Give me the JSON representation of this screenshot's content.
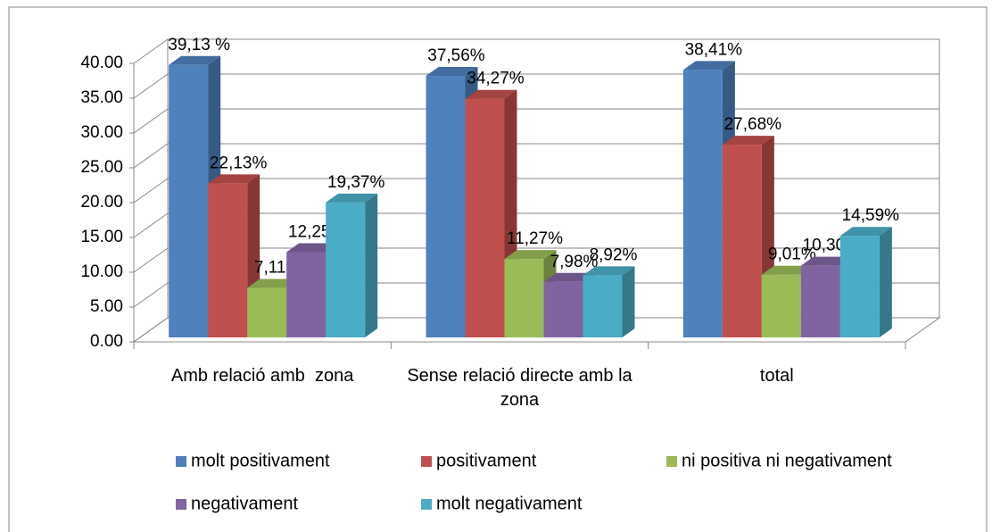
{
  "chart_data": {
    "type": "bar3d",
    "categories": [
      "Amb relació amb  zona",
      "Sense relació directe amb la zona",
      "total"
    ],
    "series": [
      {
        "name": "molt positivament",
        "color": "#4f81bd",
        "values": [
          39.13,
          37.56,
          38.41
        ],
        "value_labels": [
          "39,13 %",
          "37,56%",
          "38,41%"
        ]
      },
      {
        "name": "positivament",
        "color": "#c0504d",
        "values": [
          22.13,
          34.27,
          27.68
        ],
        "value_labels": [
          "22,13%",
          "34,27%",
          "27,68%"
        ]
      },
      {
        "name": "ni positiva ni negativament",
        "color": "#9bbb59",
        "values": [
          7.11,
          11.27,
          9.01
        ],
        "value_labels": [
          "7,11%",
          "11,27%",
          "9,01%"
        ]
      },
      {
        "name": "negativament",
        "color": "#8064a2",
        "values": [
          12.25,
          7.98,
          10.3
        ],
        "value_labels": [
          "12,25%",
          "7,98%",
          "10,30%"
        ]
      },
      {
        "name": "molt negativament",
        "color": "#4bacc6",
        "values": [
          19.37,
          8.92,
          14.59
        ],
        "value_labels": [
          "19,37%",
          "8,92%",
          "14,59%"
        ]
      }
    ],
    "ylim": [
      0,
      40
    ],
    "yticks": [
      {
        "value": 0,
        "label": "0.00"
      },
      {
        "value": 5,
        "label": "5.00"
      },
      {
        "value": 10,
        "label": "10.00"
      },
      {
        "value": 15,
        "label": "15.00"
      },
      {
        "value": 20,
        "label": "20.00"
      },
      {
        "value": 25,
        "label": "25.00"
      },
      {
        "value": 30,
        "label": "30.00"
      },
      {
        "value": 35,
        "label": "35.00"
      },
      {
        "value": 40,
        "label": "40.00"
      }
    ],
    "grid": true,
    "legend": "bottom"
  }
}
